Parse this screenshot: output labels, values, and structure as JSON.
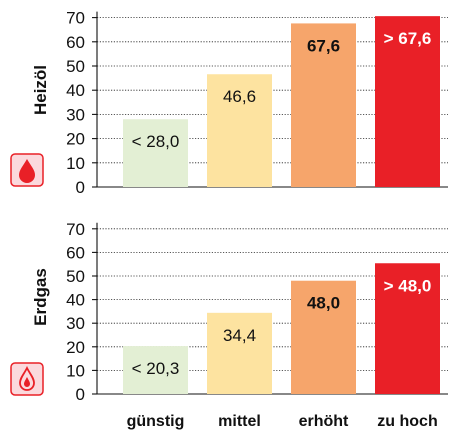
{
  "chart_data": [
    {
      "type": "bar",
      "ylabel": "Heizöl",
      "icon": "oil-drop-icon",
      "categories": [
        "günstig",
        "mittel",
        "erhöht",
        "zu hoch"
      ],
      "values": [
        28.0,
        46.6,
        67.6,
        70.6
      ],
      "labels": [
        "< 28,0",
        "46,6",
        "67,6",
        "> 67,6"
      ],
      "colors": [
        "#e3efd4",
        "#fde3a0",
        "#f6a56b",
        "#e92027"
      ],
      "label_colors": [
        "#111111",
        "#111111",
        "#111111",
        "#ffffff"
      ],
      "label_bold": [
        false,
        false,
        true,
        true
      ],
      "yticks": [
        "0",
        "10",
        "20",
        "30",
        "40",
        "50",
        "60",
        "70"
      ],
      "ylim": [
        0,
        70
      ]
    },
    {
      "type": "bar",
      "ylabel": "Erdgas",
      "icon": "gas-flame-icon",
      "categories": [
        "günstig",
        "mittel",
        "erhöht",
        "zu hoch"
      ],
      "values": [
        20.3,
        34.4,
        48.0,
        55.4
      ],
      "labels": [
        "< 20,3",
        "34,4",
        "48,0",
        "> 48,0"
      ],
      "colors": [
        "#e3efd4",
        "#fde3a0",
        "#f6a56b",
        "#e92027"
      ],
      "label_colors": [
        "#111111",
        "#111111",
        "#111111",
        "#ffffff"
      ],
      "label_bold": [
        false,
        false,
        true,
        true
      ],
      "yticks": [
        "0",
        "10",
        "20",
        "30",
        "40",
        "50",
        "60",
        "70"
      ],
      "ylim": [
        0,
        70
      ]
    }
  ],
  "categories": [
    "günstig",
    "mittel",
    "erhöht",
    "zu hoch"
  ],
  "icon_colors": {
    "accent": "#e92027",
    "icon_bg": "#fbd9dd"
  }
}
